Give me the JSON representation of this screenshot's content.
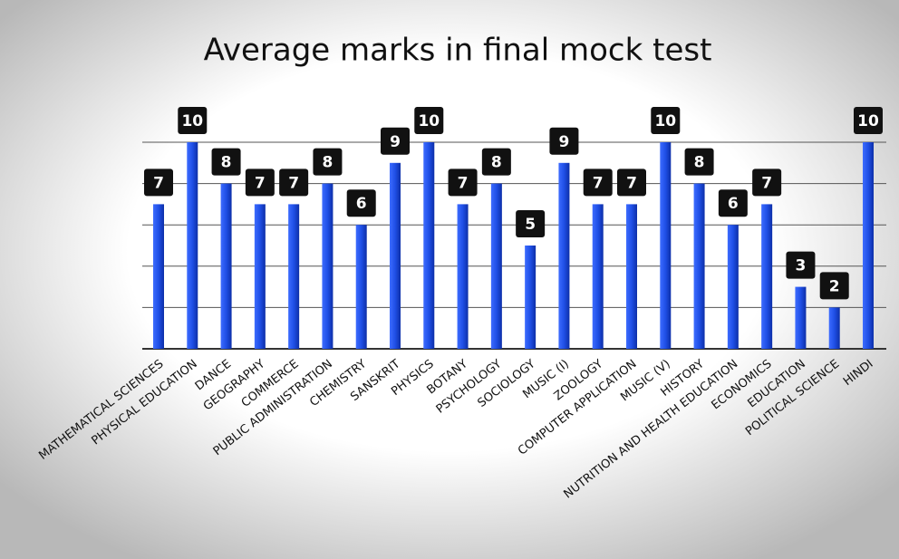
{
  "chart_data": {
    "type": "bar",
    "title": "Average marks in final mock test",
    "categories": [
      "MATHEMATICAL SCIENCES",
      "PHYSICAL EDUCATION",
      "DANCE",
      "GEOGRAPHY",
      "COMMERCE",
      "PUBLIC ADMINISTRATION",
      "CHEMISTRY",
      "SANSKRIT",
      "PHYSICS",
      "BOTANY",
      "PSYCHOLOGY",
      "SOCIOLOGY",
      "MUSIC (I)",
      "ZOOLOGY",
      "COMPUTER APPLICATION",
      "MUSIC (V)",
      "HISTORY",
      "NUTRITION AND HEALTH EDUCATION",
      "ECONOMICS",
      "EDUCATION",
      "POLITICAL SCIENCE",
      "HINDI"
    ],
    "values": [
      7,
      10,
      8,
      7,
      7,
      8,
      6,
      9,
      10,
      7,
      8,
      5,
      9,
      7,
      7,
      10,
      8,
      6,
      7,
      3,
      2,
      10
    ],
    "color": "#1f4fe6",
    "ylim": [
      0,
      10
    ],
    "yticks": [
      0,
      2,
      4,
      6,
      8,
      10
    ],
    "grid": true
  }
}
